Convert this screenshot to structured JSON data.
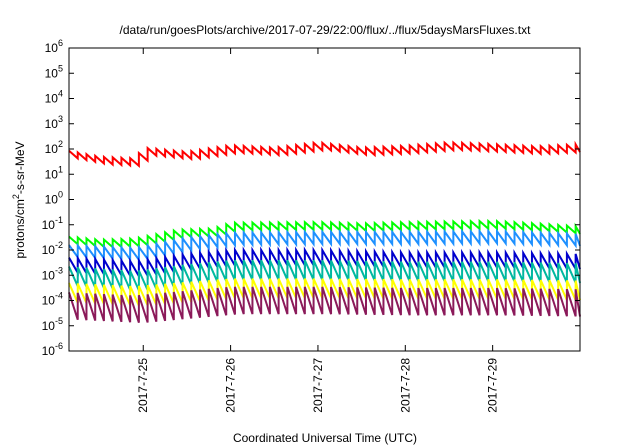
{
  "chart_data": {
    "type": "line",
    "title": "/data/run/goesPlots/archive/2017-07-29/22:00/flux/../flux/5daysMarsFluxes.txt",
    "xlabel": "Coordinated Universal Time (UTC)",
    "ylabel": {
      "before": "protons/cm",
      "sup": "2",
      "after": "-s-sr-MeV"
    },
    "y_scale": "log",
    "ylim_exponents": [
      -6,
      6
    ],
    "y_tick_labels": [
      {
        "base": "10",
        "exp": "6"
      },
      {
        "base": "10",
        "exp": "5"
      },
      {
        "base": "10",
        "exp": "4"
      },
      {
        "base": "10",
        "exp": "3"
      },
      {
        "base": "10",
        "exp": "2"
      },
      {
        "base": "10",
        "exp": "1"
      },
      {
        "base": "10",
        "exp": "0"
      },
      {
        "base": "10",
        "exp": "-1"
      },
      {
        "base": "10",
        "exp": "-2"
      },
      {
        "base": "10",
        "exp": "-3"
      },
      {
        "base": "10",
        "exp": "-4"
      },
      {
        "base": "10",
        "exp": "-5"
      },
      {
        "base": "10",
        "exp": "-6"
      }
    ],
    "x_range_days": [
      24.15,
      30.0
    ],
    "x_ticks": [
      {
        "day": 25,
        "label": "2017-7-25"
      },
      {
        "day": 26,
        "label": "2017-7-26"
      },
      {
        "day": 27,
        "label": "2017-7-27"
      },
      {
        "day": 28,
        "label": "2017-7-28"
      },
      {
        "day": 29,
        "label": "2017-7-29"
      }
    ],
    "grid": false,
    "legend": "none",
    "sawtooth_period_days": 0.1,
    "series": [
      {
        "color": "#ff0000",
        "trend": [
          [
            24.15,
            60
          ],
          [
            24.5,
            35
          ],
          [
            24.9,
            30
          ],
          [
            25.0,
            80
          ],
          [
            25.5,
            55
          ],
          [
            26.0,
            100
          ],
          [
            26.5,
            80
          ],
          [
            27.0,
            130
          ],
          [
            27.5,
            80
          ],
          [
            28.0,
            95
          ],
          [
            28.5,
            130
          ],
          [
            29.0,
            110
          ],
          [
            29.5,
            90
          ],
          [
            30.0,
            110
          ]
        ],
        "amp": 2.0
      },
      {
        "color": "#00ff00",
        "trend": [
          [
            24.15,
            0.024
          ],
          [
            24.5,
            0.018
          ],
          [
            24.9,
            0.02
          ],
          [
            25.4,
            0.045
          ],
          [
            25.8,
            0.05
          ],
          [
            26.0,
            0.085
          ],
          [
            27.0,
            0.09
          ],
          [
            27.5,
            0.08
          ],
          [
            28.0,
            0.09
          ],
          [
            29.0,
            0.1
          ],
          [
            29.5,
            0.08
          ],
          [
            30.0,
            0.06
          ]
        ],
        "amp": 2.0
      },
      {
        "color": "#1e90ff",
        "trend": [
          [
            24.15,
            0.009
          ],
          [
            24.9,
            0.007
          ],
          [
            25.5,
            0.018
          ],
          [
            26.0,
            0.028
          ],
          [
            27.0,
            0.03
          ],
          [
            28.0,
            0.03
          ],
          [
            29.0,
            0.032
          ],
          [
            30.0,
            0.025
          ]
        ],
        "amp": 3.0
      },
      {
        "color": "#0000cd",
        "trend": [
          [
            24.15,
            0.0025
          ],
          [
            24.9,
            0.0018
          ],
          [
            25.5,
            0.0035
          ],
          [
            26.0,
            0.005
          ],
          [
            27.0,
            0.005
          ],
          [
            28.0,
            0.004
          ],
          [
            29.0,
            0.004
          ],
          [
            30.0,
            0.0035
          ]
        ],
        "amp": 4.0
      },
      {
        "color": "#00b8a0",
        "trend": [
          [
            24.15,
            0.0009
          ],
          [
            24.9,
            0.0006
          ],
          [
            25.5,
            0.0011
          ],
          [
            26.0,
            0.0016
          ],
          [
            27.0,
            0.0016
          ],
          [
            28.0,
            0.0014
          ],
          [
            29.0,
            0.0014
          ],
          [
            30.0,
            0.0012
          ]
        ],
        "amp": 6.0
      },
      {
        "color": "#ffff00",
        "trend": [
          [
            24.15,
            0.0002
          ],
          [
            24.9,
            0.00015
          ],
          [
            25.5,
            0.00022
          ],
          [
            26.0,
            0.0003
          ],
          [
            27.0,
            0.0003
          ],
          [
            28.0,
            0.00028
          ],
          [
            29.0,
            0.00028
          ],
          [
            30.0,
            0.00025
          ]
        ],
        "amp": 6.0
      },
      {
        "color": "#8b1a5a",
        "trend": [
          [
            24.15,
            6e-05
          ],
          [
            24.9,
            4.5e-05
          ],
          [
            25.5,
            7e-05
          ],
          [
            26.0,
            0.0001
          ],
          [
            27.0,
            0.0001
          ],
          [
            28.0,
            9e-05
          ],
          [
            29.0,
            9e-05
          ],
          [
            30.0,
            8e-05
          ]
        ],
        "amp": 12.0
      }
    ]
  }
}
